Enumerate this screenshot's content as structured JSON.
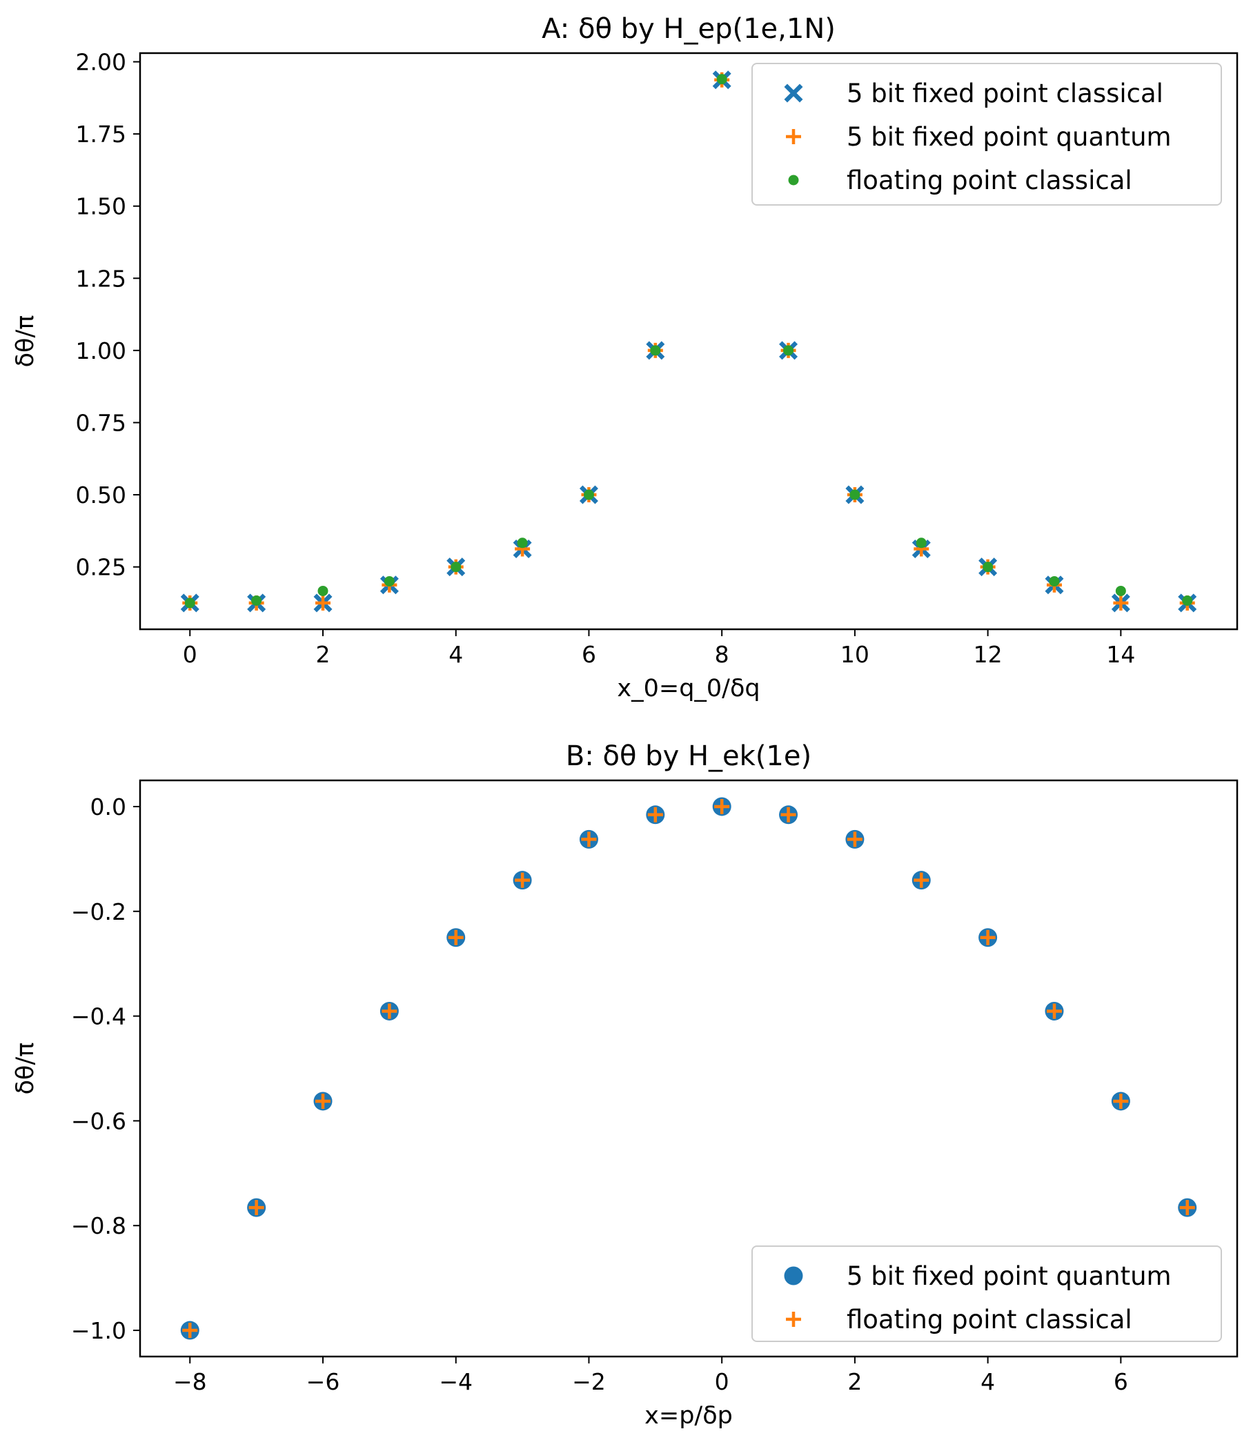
{
  "chart_data": [
    {
      "type": "scatter",
      "title": "A: δθ by H_ep(1e,1N)",
      "xlabel": "x_0=q_0/δq",
      "ylabel": "δθ/π",
      "xlim": [
        -0.75,
        15.75
      ],
      "ylim": [
        0.034,
        2.03
      ],
      "x_ticks": [
        0,
        2,
        4,
        6,
        8,
        10,
        12,
        14
      ],
      "x_tick_labels": [
        "0",
        "2",
        "4",
        "6",
        "8",
        "10",
        "12",
        "14"
      ],
      "y_ticks": [
        0.25,
        0.5,
        0.75,
        1.0,
        1.25,
        1.5,
        1.75,
        2.0
      ],
      "y_tick_labels": [
        "0.25",
        "0.50",
        "0.75",
        "1.00",
        "1.25",
        "1.50",
        "1.75",
        "2.00"
      ],
      "grid": false,
      "legend_position": "upper-right",
      "x": [
        0,
        1,
        2,
        3,
        4,
        5,
        6,
        7,
        8,
        9,
        10,
        11,
        12,
        13,
        14,
        15
      ],
      "series": [
        {
          "name": "5 bit fixed point classical",
          "marker": "x-filled",
          "color": "#1f77b4",
          "values": [
            0.125,
            0.125,
            0.125,
            0.1875,
            0.25,
            0.3125,
            0.5,
            1.0,
            1.9375,
            1.0,
            0.5,
            0.3125,
            0.25,
            0.1875,
            0.125,
            0.125
          ]
        },
        {
          "name": "5 bit fixed point quantum",
          "marker": "plus",
          "color": "#ff7f0e",
          "values": [
            0.125,
            0.125,
            0.125,
            0.1875,
            0.25,
            0.3125,
            0.5,
            1.0,
            1.9375,
            1.0,
            0.5,
            0.3125,
            0.25,
            0.1875,
            0.125,
            0.125
          ]
        },
        {
          "name": "floating point classical",
          "marker": "dot",
          "color": "#2ca02c",
          "values": [
            0.125,
            0.1333,
            0.1667,
            0.2,
            0.25,
            0.3333,
            0.5,
            1.0,
            1.94,
            1.0,
            0.5,
            0.3333,
            0.25,
            0.2,
            0.1667,
            0.1333
          ]
        }
      ]
    },
    {
      "type": "scatter",
      "title": "B: δθ by H_ek(1e)",
      "xlabel": "x=p/δp",
      "ylabel": "δθ/π",
      "xlim": [
        -8.75,
        7.75
      ],
      "ylim": [
        -1.05,
        0.05
      ],
      "x_ticks": [
        -8,
        -6,
        -4,
        -2,
        0,
        2,
        4,
        6
      ],
      "x_tick_labels": [
        "−8",
        "−6",
        "−4",
        "−2",
        "0",
        "2",
        "4",
        "6"
      ],
      "y_ticks": [
        0.0,
        -0.2,
        -0.4,
        -0.6,
        -0.8,
        -1.0
      ],
      "y_tick_labels": [
        "0.0",
        "−0.2",
        "−0.4",
        "−0.6",
        "−0.8",
        "−1.0"
      ],
      "grid": false,
      "legend_position": "lower-right",
      "x": [
        -8,
        -7,
        -6,
        -5,
        -4,
        -3,
        -2,
        -1,
        0,
        1,
        2,
        3,
        4,
        5,
        6,
        7
      ],
      "series": [
        {
          "name": "5 bit fixed point quantum",
          "marker": "circle",
          "color": "#1f77b4",
          "values": [
            -1.0,
            -0.7656,
            -0.5625,
            -0.3906,
            -0.25,
            -0.1406,
            -0.0625,
            -0.0156,
            0.0,
            -0.0156,
            -0.0625,
            -0.1406,
            -0.25,
            -0.3906,
            -0.5625,
            -0.7656
          ]
        },
        {
          "name": "floating point classical",
          "marker": "plus",
          "color": "#ff7f0e",
          "values": [
            -1.0,
            -0.7656,
            -0.5625,
            -0.3906,
            -0.25,
            -0.1406,
            -0.0625,
            -0.0156,
            0.0,
            -0.0156,
            -0.0625,
            -0.1406,
            -0.25,
            -0.3906,
            -0.5625,
            -0.7656
          ]
        }
      ]
    }
  ]
}
